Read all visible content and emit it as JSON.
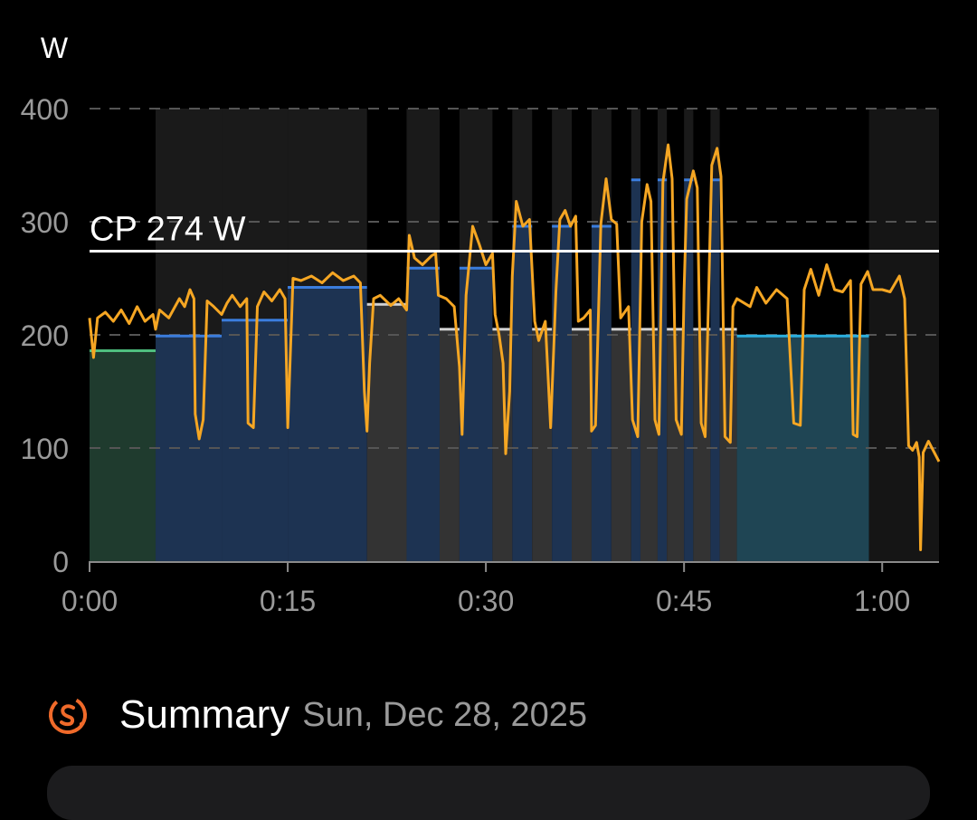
{
  "chart_data": {
    "type": "line",
    "ylabel": "W",
    "ylim": [
      0,
      400
    ],
    "y_ticks": [
      {
        "value": 0,
        "label": "0"
      },
      {
        "value": 100,
        "label": "100"
      },
      {
        "value": 200,
        "label": "200"
      },
      {
        "value": 300,
        "label": "300"
      },
      {
        "value": 400,
        "label": "400"
      }
    ],
    "xlim_minutes": [
      0,
      64.3
    ],
    "x_ticks": [
      {
        "value": 0,
        "label": "0:00"
      },
      {
        "value": 15,
        "label": "0:15"
      },
      {
        "value": 30,
        "label": "0:30"
      },
      {
        "value": 45,
        "label": "0:45"
      },
      {
        "value": 60,
        "label": "1:00"
      }
    ],
    "grid": "horizontal-dashed",
    "cp_line": {
      "value": 274,
      "label": "CP 274 W",
      "color": "#ffffff"
    },
    "series": [
      {
        "name": "",
        "color": "#f5a623",
        "points": [
          [
            0,
            215
          ],
          [
            0.3,
            180
          ],
          [
            0.6,
            215
          ],
          [
            1.2,
            220
          ],
          [
            1.8,
            212
          ],
          [
            2.4,
            222
          ],
          [
            3,
            210
          ],
          [
            3.6,
            225
          ],
          [
            4.2,
            212
          ],
          [
            4.8,
            218
          ],
          [
            5,
            205
          ],
          [
            5.3,
            222
          ],
          [
            6,
            215
          ],
          [
            6.8,
            232
          ],
          [
            7.2,
            225
          ],
          [
            7.6,
            240
          ],
          [
            7.9,
            232
          ],
          [
            8,
            130
          ],
          [
            8.3,
            108
          ],
          [
            8.6,
            125
          ],
          [
            8.9,
            230
          ],
          [
            9.4,
            225
          ],
          [
            10,
            218
          ],
          [
            10.4,
            228
          ],
          [
            10.8,
            235
          ],
          [
            11.4,
            225
          ],
          [
            11.9,
            232
          ],
          [
            12,
            122
          ],
          [
            12.4,
            118
          ],
          [
            12.7,
            225
          ],
          [
            13.2,
            238
          ],
          [
            13.8,
            230
          ],
          [
            14.4,
            240
          ],
          [
            14.8,
            232
          ],
          [
            15,
            118
          ],
          [
            15.4,
            250
          ],
          [
            16,
            248
          ],
          [
            16.8,
            252
          ],
          [
            17.6,
            246
          ],
          [
            18.4,
            255
          ],
          [
            19.2,
            248
          ],
          [
            20,
            252
          ],
          [
            20.5,
            246
          ],
          [
            20.8,
            150
          ],
          [
            21,
            115
          ],
          [
            21.2,
            175
          ],
          [
            21.5,
            232
          ],
          [
            22,
            235
          ],
          [
            22.8,
            226
          ],
          [
            23.4,
            232
          ],
          [
            24,
            222
          ],
          [
            24.2,
            288
          ],
          [
            24.6,
            268
          ],
          [
            25.2,
            262
          ],
          [
            25.9,
            270
          ],
          [
            26.2,
            272
          ],
          [
            26.4,
            235
          ],
          [
            27,
            232
          ],
          [
            27.6,
            225
          ],
          [
            28,
            172
          ],
          [
            28.2,
            112
          ],
          [
            28.5,
            235
          ],
          [
            29,
            296
          ],
          [
            29.5,
            280
          ],
          [
            30,
            262
          ],
          [
            30.5,
            272
          ],
          [
            30.7,
            218
          ],
          [
            31,
            200
          ],
          [
            31.3,
            175
          ],
          [
            31.5,
            95
          ],
          [
            31.8,
            150
          ],
          [
            32,
            252
          ],
          [
            32.3,
            318
          ],
          [
            32.8,
            296
          ],
          [
            33.3,
            302
          ],
          [
            33.7,
            212
          ],
          [
            34,
            195
          ],
          [
            34.5,
            212
          ],
          [
            34.9,
            118
          ],
          [
            35.3,
            238
          ],
          [
            35.6,
            302
          ],
          [
            36,
            310
          ],
          [
            36.4,
            296
          ],
          [
            36.8,
            305
          ],
          [
            37,
            212
          ],
          [
            37.4,
            215
          ],
          [
            37.9,
            222
          ],
          [
            38,
            115
          ],
          [
            38.3,
            120
          ],
          [
            38.7,
            298
          ],
          [
            39.1,
            338
          ],
          [
            39.5,
            302
          ],
          [
            39.9,
            298
          ],
          [
            40.2,
            215
          ],
          [
            40.8,
            225
          ],
          [
            41.1,
            125
          ],
          [
            41.5,
            110
          ],
          [
            41.8,
            300
          ],
          [
            42.2,
            333
          ],
          [
            42.5,
            318
          ],
          [
            42.8,
            125
          ],
          [
            43.1,
            112
          ],
          [
            43.4,
            335
          ],
          [
            43.8,
            368
          ],
          [
            44.1,
            338
          ],
          [
            44.4,
            125
          ],
          [
            44.8,
            112
          ],
          [
            45,
            240
          ],
          [
            45.2,
            320
          ],
          [
            45.7,
            345
          ],
          [
            46,
            330
          ],
          [
            46.3,
            122
          ],
          [
            46.6,
            110
          ],
          [
            47.1,
            350
          ],
          [
            47.5,
            365
          ],
          [
            47.8,
            340
          ],
          [
            48.1,
            110
          ],
          [
            48.5,
            105
          ],
          [
            48.7,
            225
          ],
          [
            49,
            232
          ],
          [
            50,
            225
          ],
          [
            50.5,
            242
          ],
          [
            51.2,
            228
          ],
          [
            52,
            240
          ],
          [
            52.8,
            232
          ],
          [
            53.3,
            122
          ],
          [
            53.8,
            120
          ],
          [
            54.1,
            240
          ],
          [
            54.6,
            258
          ],
          [
            55.2,
            235
          ],
          [
            55.8,
            262
          ],
          [
            56.4,
            240
          ],
          [
            57,
            238
          ],
          [
            57.6,
            248
          ],
          [
            57.8,
            112
          ],
          [
            58.1,
            110
          ],
          [
            58.4,
            245
          ],
          [
            58.9,
            256
          ],
          [
            59.3,
            240
          ],
          [
            60,
            240
          ],
          [
            60.6,
            238
          ],
          [
            61.3,
            252
          ],
          [
            61.7,
            232
          ],
          [
            62,
            102
          ],
          [
            62.3,
            98
          ],
          [
            62.6,
            105
          ],
          [
            62.8,
            92
          ],
          [
            62.9,
            10
          ],
          [
            63.1,
            96
          ],
          [
            63.5,
            106
          ],
          [
            64.3,
            88
          ]
        ]
      }
    ],
    "target_steps": [
      {
        "start": 0,
        "end": 5,
        "power": 186,
        "color": "#4fbf7f"
      },
      {
        "start": 5,
        "end": 10,
        "power": 199,
        "color": "#3b7ddd"
      },
      {
        "start": 10,
        "end": 15,
        "power": 213,
        "color": "#3b7ddd"
      },
      {
        "start": 15,
        "end": 21,
        "power": 242,
        "color": "#3b7ddd"
      },
      {
        "start": 21,
        "end": 24,
        "power": 227,
        "color": "#ffffff"
      },
      {
        "start": 24,
        "end": 26.5,
        "power": 259,
        "color": "#3b7ddd"
      },
      {
        "start": 26.5,
        "end": 28,
        "power": 205,
        "color": "#ffffff"
      },
      {
        "start": 28,
        "end": 30.5,
        "power": 259,
        "color": "#3b7ddd"
      },
      {
        "start": 30.5,
        "end": 32,
        "power": 205,
        "color": "#ffffff"
      },
      {
        "start": 32,
        "end": 33.5,
        "power": 296,
        "color": "#3b7ddd"
      },
      {
        "start": 33.5,
        "end": 35,
        "power": 205,
        "color": "#ffffff"
      },
      {
        "start": 35,
        "end": 36.5,
        "power": 296,
        "color": "#3b7ddd"
      },
      {
        "start": 36.5,
        "end": 38,
        "power": 205,
        "color": "#ffffff"
      },
      {
        "start": 38,
        "end": 39.5,
        "power": 296,
        "color": "#3b7ddd"
      },
      {
        "start": 39.5,
        "end": 41,
        "power": 205,
        "color": "#ffffff"
      },
      {
        "start": 41,
        "end": 41.7,
        "power": 337,
        "color": "#3b7ddd"
      },
      {
        "start": 41.7,
        "end": 43,
        "power": 205,
        "color": "#ffffff"
      },
      {
        "start": 43,
        "end": 43.7,
        "power": 337,
        "color": "#3b7ddd"
      },
      {
        "start": 43.7,
        "end": 45,
        "power": 205,
        "color": "#ffffff"
      },
      {
        "start": 45,
        "end": 45.7,
        "power": 337,
        "color": "#3b7ddd"
      },
      {
        "start": 45.7,
        "end": 47,
        "power": 205,
        "color": "#ffffff"
      },
      {
        "start": 47,
        "end": 47.7,
        "power": 337,
        "color": "#3b7ddd"
      },
      {
        "start": 47.7,
        "end": 49,
        "power": 205,
        "color": "#ffffff"
      },
      {
        "start": 49,
        "end": 59,
        "power": 199,
        "color": "#2bb0e0"
      }
    ],
    "colors": {
      "power_line": "#f5a623",
      "cp_line": "#ffffff",
      "grid": "#555555",
      "axis": "#8a8a8a",
      "zone_work": "#1d3352",
      "zone_rest": "#333333",
      "zone_warm": "#1f3b2e",
      "zone_cool": "#1f4554"
    }
  },
  "summary": {
    "icon": "strava-summary-icon",
    "title": "Summary",
    "date": "Sun, Dec 28, 2025"
  }
}
